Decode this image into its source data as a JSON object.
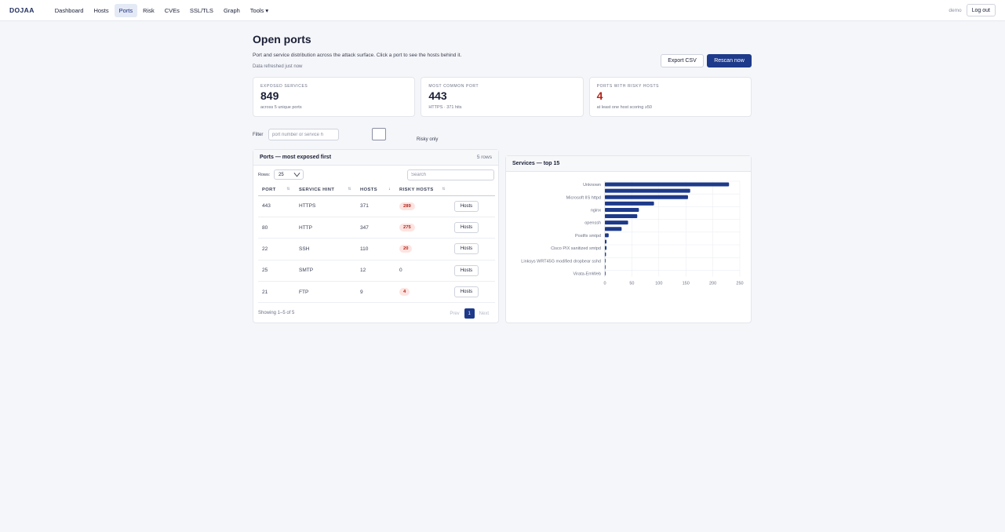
{
  "nav": {
    "brand": "DOJAA",
    "items": [
      {
        "label": "Dashboard"
      },
      {
        "label": "Hosts"
      },
      {
        "label": "Ports",
        "active": true
      },
      {
        "label": "Risk"
      },
      {
        "label": "CVEs"
      },
      {
        "label": "SSL/TLS"
      },
      {
        "label": "Graph"
      },
      {
        "label": "Tools ▾"
      }
    ],
    "user": "demo",
    "logout_label": "Log out"
  },
  "header": {
    "title": "Open ports",
    "description": "Port and service distribution across the attack surface. Click a port to see the hosts behind it.",
    "refreshed": "Data refreshed just now",
    "export_label": "Export CSV",
    "rescan_label": "Rescan now"
  },
  "cards": [
    {
      "label": "EXPOSED SERVICES",
      "value": "849",
      "sub": "across 5 unique ports"
    },
    {
      "label": "MOST COMMON PORT",
      "value": "443",
      "sub": "HTTPS · 371 hits"
    },
    {
      "label": "PORTS WITH RISKY HOSTS",
      "value": "4",
      "sub": "at least one host scoring ≥50"
    }
  ],
  "filter": {
    "label": "Filter",
    "placeholder": "port number or service h",
    "risky_label": "Risky only"
  },
  "ports_table": {
    "title": "Ports — most exposed first",
    "row_count": "5 rows",
    "rows_label": "Rows:",
    "rows_value": "25",
    "search_placeholder": "Search",
    "columns": [
      "PORT",
      "SERVICE HINT",
      "HOSTS",
      "RISKY HOSTS",
      ""
    ],
    "rows": [
      {
        "port": "443",
        "service": "HTTPS",
        "hosts": "371",
        "risky": "289",
        "risky_badge": true,
        "action": "Hosts"
      },
      {
        "port": "80",
        "service": "HTTP",
        "hosts": "347",
        "risky": "275",
        "risky_badge": true,
        "action": "Hosts"
      },
      {
        "port": "22",
        "service": "SSH",
        "hosts": "110",
        "risky": "20",
        "risky_badge": true,
        "action": "Hosts"
      },
      {
        "port": "25",
        "service": "SMTP",
        "hosts": "12",
        "risky": "0",
        "risky_badge": false,
        "action": "Hosts"
      },
      {
        "port": "21",
        "service": "FTP",
        "hosts": "9",
        "risky": "4",
        "risky_badge": true,
        "action": "Hosts"
      }
    ],
    "showing": "Showing 1–5 of 5",
    "prev_label": "Prev",
    "current_page": "1",
    "next_label": "Next"
  },
  "chart_panel": {
    "title": "Services — top 15"
  },
  "chart_data": {
    "type": "bar",
    "orientation": "horizontal",
    "categories": [
      "Unknown",
      "",
      "Microsoft IIS httpd",
      "",
      "nginx",
      "",
      "openssh",
      "",
      "Postfix smtpd",
      "",
      "Cisco PIX sanitized smtpd",
      "",
      "Linksys WRT45G modified dropbear sshd",
      "",
      "Virata-EmWeb"
    ],
    "values": [
      230,
      158,
      154,
      91,
      63,
      60,
      43,
      31,
      7,
      3,
      3,
      2,
      1,
      1,
      1
    ],
    "xlim": [
      0,
      250
    ],
    "xticks": [
      0,
      50,
      100,
      150,
      200,
      250
    ],
    "grid": true,
    "color": "#1e3a8a"
  }
}
